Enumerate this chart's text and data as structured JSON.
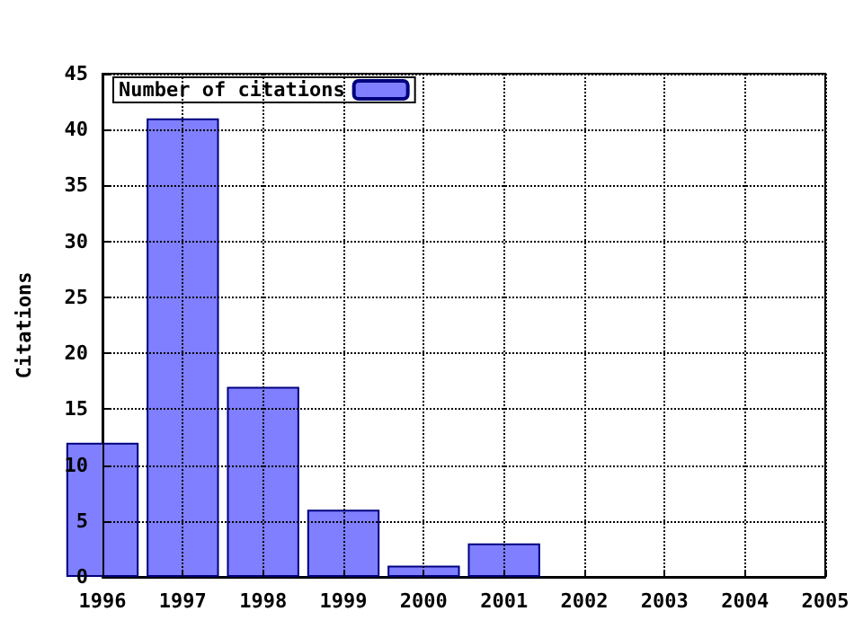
{
  "chart_data": {
    "type": "bar",
    "ylabel": "Citations",
    "x": [
      1996,
      1997,
      1998,
      1999,
      2000,
      2001
    ],
    "series": [
      {
        "name": "Number of citations",
        "color": "#7f7fff",
        "values": [
          12,
          41,
          17,
          6,
          1,
          3
        ]
      }
    ],
    "xlim": [
      1996,
      2005
    ],
    "xticks": [
      1996,
      1997,
      1998,
      1999,
      2000,
      2001,
      2002,
      2003,
      2004,
      2005
    ],
    "ylim": [
      0,
      45
    ],
    "yticks": [
      0,
      5,
      10,
      15,
      20,
      25,
      30,
      35,
      40,
      45
    ],
    "grid": true,
    "legend": "top left"
  }
}
